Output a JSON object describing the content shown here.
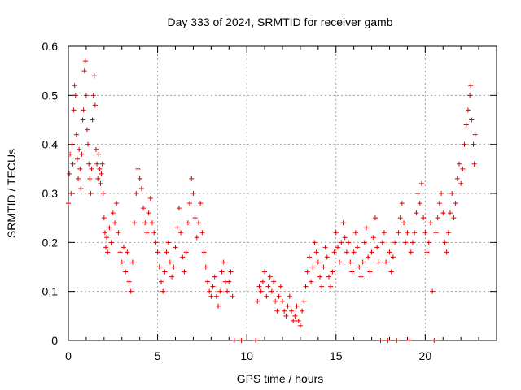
{
  "chart_data": {
    "type": "scatter",
    "title": "Day 333 of 2024, SRMTID for receiver gamb",
    "xlabel": "GPS time / hours",
    "ylabel": "SRMTID / TECUs",
    "xlim": [
      0,
      24
    ],
    "ylim": [
      0,
      0.6
    ],
    "xticks": [
      0,
      5,
      10,
      15,
      20
    ],
    "yticks": [
      0,
      0.1,
      0.2,
      0.3,
      0.4,
      0.5,
      0.6
    ],
    "xtick_labels": [
      "0",
      "5",
      "10",
      "15",
      "20"
    ],
    "ytick_labels": [
      "0",
      "0.1",
      "0.2",
      "0.3",
      "0.4",
      "0.5",
      "0.6"
    ],
    "grid": true,
    "marker": "+",
    "color": "#e00000",
    "series": [
      {
        "name": "SRMTID",
        "points": [
          [
            0.0,
            0.28
          ],
          [
            0.05,
            0.34
          ],
          [
            0.1,
            0.38
          ],
          [
            0.15,
            0.3
          ],
          [
            0.2,
            0.4
          ],
          [
            0.25,
            0.36
          ],
          [
            0.3,
            0.47
          ],
          [
            0.35,
            0.52
          ],
          [
            0.4,
            0.5
          ],
          [
            0.45,
            0.42
          ],
          [
            0.5,
            0.37
          ],
          [
            0.55,
            0.33
          ],
          [
            0.6,
            0.39
          ],
          [
            0.65,
            0.35
          ],
          [
            0.7,
            0.31
          ],
          [
            0.75,
            0.38
          ],
          [
            0.8,
            0.45
          ],
          [
            0.85,
            0.47
          ],
          [
            0.9,
            0.55
          ],
          [
            0.95,
            0.57
          ],
          [
            1.0,
            0.5
          ],
          [
            1.05,
            0.43
          ],
          [
            1.1,
            0.4
          ],
          [
            1.15,
            0.36
          ],
          [
            1.2,
            0.33
          ],
          [
            1.25,
            0.3
          ],
          [
            1.3,
            0.35
          ],
          [
            1.35,
            0.45
          ],
          [
            1.4,
            0.5
          ],
          [
            1.45,
            0.54
          ],
          [
            1.5,
            0.48
          ],
          [
            1.55,
            0.39
          ],
          [
            1.6,
            0.36
          ],
          [
            1.65,
            0.33
          ],
          [
            1.7,
            0.38
          ],
          [
            1.75,
            0.35
          ],
          [
            1.8,
            0.32
          ],
          [
            1.85,
            0.34
          ],
          [
            1.9,
            0.36
          ],
          [
            1.95,
            0.3
          ],
          [
            2.0,
            0.25
          ],
          [
            2.05,
            0.22
          ],
          [
            2.1,
            0.19
          ],
          [
            2.15,
            0.21
          ],
          [
            2.2,
            0.18
          ],
          [
            2.3,
            0.23
          ],
          [
            2.4,
            0.2
          ],
          [
            2.5,
            0.26
          ],
          [
            2.6,
            0.24
          ],
          [
            2.7,
            0.28
          ],
          [
            2.8,
            0.22
          ],
          [
            2.9,
            0.18
          ],
          [
            3.0,
            0.16
          ],
          [
            3.1,
            0.19
          ],
          [
            3.2,
            0.14
          ],
          [
            3.3,
            0.18
          ],
          [
            3.4,
            0.12
          ],
          [
            3.5,
            0.1
          ],
          [
            3.6,
            0.16
          ],
          [
            3.7,
            0.24
          ],
          [
            3.8,
            0.3
          ],
          [
            3.9,
            0.35
          ],
          [
            4.0,
            0.33
          ],
          [
            4.1,
            0.31
          ],
          [
            4.2,
            0.27
          ],
          [
            4.3,
            0.24
          ],
          [
            4.4,
            0.22
          ],
          [
            4.5,
            0.26
          ],
          [
            4.6,
            0.29
          ],
          [
            4.7,
            0.24
          ],
          [
            4.8,
            0.22
          ],
          [
            4.9,
            0.2
          ],
          [
            5.0,
            0.18
          ],
          [
            5.1,
            0.15
          ],
          [
            5.2,
            0.12
          ],
          [
            5.3,
            0.1
          ],
          [
            5.4,
            0.14
          ],
          [
            5.5,
            0.18
          ],
          [
            5.6,
            0.2
          ],
          [
            5.7,
            0.16
          ],
          [
            5.8,
            0.13
          ],
          [
            5.9,
            0.15
          ],
          [
            6.0,
            0.19
          ],
          [
            6.1,
            0.23
          ],
          [
            6.2,
            0.27
          ],
          [
            6.3,
            0.22
          ],
          [
            6.4,
            0.17
          ],
          [
            6.5,
            0.14
          ],
          [
            6.6,
            0.18
          ],
          [
            6.7,
            0.24
          ],
          [
            6.8,
            0.28
          ],
          [
            6.9,
            0.33
          ],
          [
            7.0,
            0.3
          ],
          [
            7.1,
            0.25
          ],
          [
            7.2,
            0.21
          ],
          [
            7.3,
            0.24
          ],
          [
            7.4,
            0.28
          ],
          [
            7.5,
            0.22
          ],
          [
            7.6,
            0.18
          ],
          [
            7.7,
            0.15
          ],
          [
            7.8,
            0.12
          ],
          [
            7.9,
            0.1
          ],
          [
            8.0,
            0.09
          ],
          [
            8.1,
            0.11
          ],
          [
            8.2,
            0.13
          ],
          [
            8.3,
            0.09
          ],
          [
            8.4,
            0.07
          ],
          [
            8.5,
            0.1
          ],
          [
            8.6,
            0.14
          ],
          [
            8.7,
            0.16
          ],
          [
            8.8,
            0.12
          ],
          [
            8.9,
            0.1
          ],
          [
            9.0,
            0.12
          ],
          [
            9.1,
            0.14
          ],
          [
            9.2,
            0.09
          ],
          [
            9.3,
            0.0
          ],
          [
            9.7,
            0.0
          ],
          [
            10.5,
            0.0
          ],
          [
            10.6,
            0.08
          ],
          [
            10.7,
            0.11
          ],
          [
            10.8,
            0.1
          ],
          [
            10.9,
            0.12
          ],
          [
            11.0,
            0.14
          ],
          [
            11.1,
            0.09
          ],
          [
            11.2,
            0.11
          ],
          [
            11.3,
            0.13
          ],
          [
            11.4,
            0.1
          ],
          [
            11.5,
            0.12
          ],
          [
            11.6,
            0.08
          ],
          [
            11.7,
            0.06
          ],
          [
            11.8,
            0.09
          ],
          [
            11.9,
            0.11
          ],
          [
            12.0,
            0.08
          ],
          [
            12.1,
            0.06
          ],
          [
            12.2,
            0.05
          ],
          [
            12.3,
            0.07
          ],
          [
            12.4,
            0.09
          ],
          [
            12.5,
            0.06
          ],
          [
            12.6,
            0.04
          ],
          [
            12.7,
            0.05
          ],
          [
            12.8,
            0.07
          ],
          [
            12.9,
            0.04
          ],
          [
            13.0,
            0.03
          ],
          [
            13.1,
            0.06
          ],
          [
            13.2,
            0.08
          ],
          [
            13.3,
            0.11
          ],
          [
            13.4,
            0.14
          ],
          [
            13.5,
            0.17
          ],
          [
            13.6,
            0.12
          ],
          [
            13.7,
            0.15
          ],
          [
            13.8,
            0.2
          ],
          [
            13.9,
            0.18
          ],
          [
            14.0,
            0.16
          ],
          [
            14.1,
            0.13
          ],
          [
            14.2,
            0.11
          ],
          [
            14.3,
            0.15
          ],
          [
            14.4,
            0.19
          ],
          [
            14.5,
            0.17
          ],
          [
            14.6,
            0.13
          ],
          [
            14.7,
            0.11
          ],
          [
            14.8,
            0.14
          ],
          [
            14.9,
            0.18
          ],
          [
            15.0,
            0.22
          ],
          [
            15.1,
            0.19
          ],
          [
            15.2,
            0.16
          ],
          [
            15.3,
            0.2
          ],
          [
            15.4,
            0.24
          ],
          [
            15.5,
            0.21
          ],
          [
            15.6,
            0.18
          ],
          [
            15.7,
            0.2
          ],
          [
            15.8,
            0.16
          ],
          [
            15.9,
            0.14
          ],
          [
            16.0,
            0.18
          ],
          [
            16.1,
            0.22
          ],
          [
            16.2,
            0.19
          ],
          [
            16.3,
            0.15
          ],
          [
            16.4,
            0.13
          ],
          [
            16.5,
            0.16
          ],
          [
            16.6,
            0.2
          ],
          [
            16.7,
            0.23
          ],
          [
            16.8,
            0.17
          ],
          [
            16.9,
            0.14
          ],
          [
            17.0,
            0.18
          ],
          [
            17.1,
            0.21
          ],
          [
            17.2,
            0.25
          ],
          [
            17.3,
            0.19
          ],
          [
            17.4,
            0.16
          ],
          [
            17.5,
            0.0
          ],
          [
            17.6,
            0.2
          ],
          [
            17.7,
            0.22
          ],
          [
            17.8,
            0.16
          ],
          [
            17.9,
            0.0
          ],
          [
            18.0,
            0.18
          ],
          [
            18.1,
            0.14
          ],
          [
            18.2,
            0.17
          ],
          [
            18.3,
            0.2
          ],
          [
            18.4,
            0.0
          ],
          [
            18.5,
            0.22
          ],
          [
            18.6,
            0.25
          ],
          [
            18.7,
            0.28
          ],
          [
            18.8,
            0.24
          ],
          [
            18.9,
            0.2
          ],
          [
            19.0,
            0.22
          ],
          [
            19.1,
            0.0
          ],
          [
            19.2,
            0.18
          ],
          [
            19.3,
            0.2
          ],
          [
            19.4,
            0.22
          ],
          [
            19.5,
            0.26
          ],
          [
            19.6,
            0.3
          ],
          [
            19.7,
            0.28
          ],
          [
            19.8,
            0.32
          ],
          [
            19.9,
            0.25
          ],
          [
            20.0,
            0.22
          ],
          [
            20.1,
            0.18
          ],
          [
            20.2,
            0.2
          ],
          [
            20.3,
            0.24
          ],
          [
            20.4,
            0.1
          ],
          [
            20.5,
            0.0
          ],
          [
            20.6,
            0.22
          ],
          [
            20.7,
            0.25
          ],
          [
            20.8,
            0.28
          ],
          [
            20.9,
            0.3
          ],
          [
            21.0,
            0.26
          ],
          [
            21.1,
            0.2
          ],
          [
            21.2,
            0.18
          ],
          [
            21.3,
            0.22
          ],
          [
            21.4,
            0.26
          ],
          [
            21.5,
            0.3
          ],
          [
            21.6,
            0.25
          ],
          [
            21.7,
            0.28
          ],
          [
            21.8,
            0.33
          ],
          [
            21.9,
            0.36
          ],
          [
            22.0,
            0.32
          ],
          [
            22.1,
            0.35
          ],
          [
            22.2,
            0.4
          ],
          [
            22.3,
            0.44
          ],
          [
            22.4,
            0.47
          ],
          [
            22.5,
            0.5
          ],
          [
            22.55,
            0.52
          ],
          [
            22.6,
            0.45
          ],
          [
            22.7,
            0.4
          ],
          [
            22.75,
            0.36
          ],
          [
            22.8,
            0.42
          ]
        ]
      }
    ]
  }
}
